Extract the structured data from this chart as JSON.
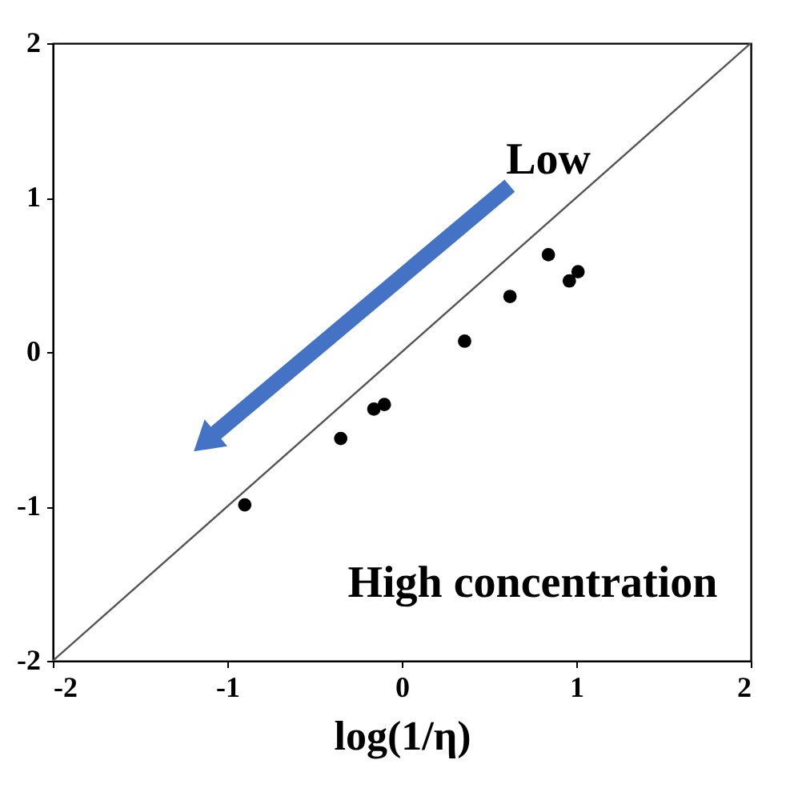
{
  "chart_data": {
    "type": "scatter",
    "xlabel": "log(1/η)",
    "xlim": [
      -2,
      2
    ],
    "ylim": [
      -2,
      2
    ],
    "xticks": [
      -2,
      -1,
      0,
      1,
      2
    ],
    "yticks": [
      -2,
      -1,
      0,
      1,
      2
    ],
    "grid": false,
    "annotations": [
      "Low",
      "High concentration"
    ],
    "series": [
      {
        "type": "line",
        "x": [
          -2,
          2
        ],
        "values": [
          -2,
          2
        ],
        "color": "#555555",
        "line_style": "solid"
      },
      {
        "marker": "circle",
        "x": [
          -0.9,
          -0.35,
          -0.16,
          -0.1,
          0.36,
          0.62,
          0.84,
          0.96,
          1.01
        ],
        "values": [
          -0.99,
          -0.56,
          -0.37,
          -0.34,
          0.07,
          0.36,
          0.63,
          0.46,
          0.52
        ],
        "color": "#000000"
      }
    ]
  }
}
